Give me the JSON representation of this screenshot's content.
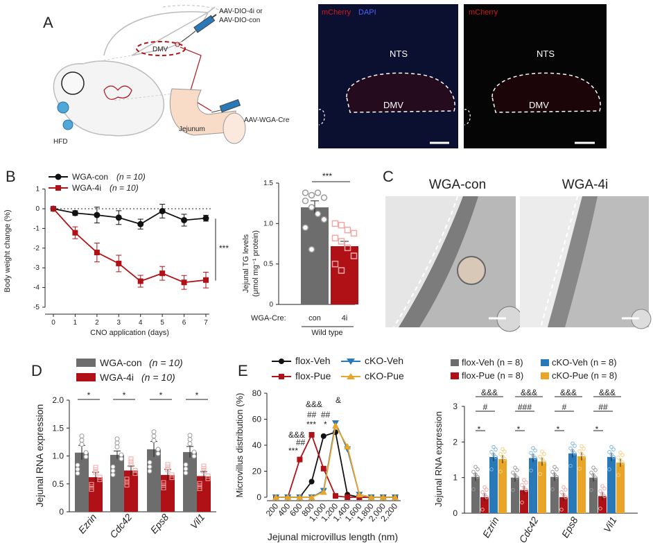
{
  "panels": {
    "A": "A",
    "B": "B",
    "C": "C",
    "D": "D",
    "E": "E"
  },
  "panelA": {
    "injection_top": [
      "AAV-DIO-4i or",
      "AAV-DIO-con"
    ],
    "injection_bottom": "AAV-WGA-Cre",
    "dmv": "DMV",
    "jejunum": "Jejunum",
    "hfd": "HFD",
    "img1": {
      "label_red": "mCherry",
      "label_blue": "DAPI",
      "nts": "NTS",
      "dmv": "DMV"
    },
    "img2": {
      "label_red": "mCherry",
      "nts": "NTS",
      "dmv": "DMV"
    }
  },
  "panelB": {
    "legend": [
      {
        "name": "WGA-con",
        "n": "(n = 10)"
      },
      {
        "name": "WGA-4i",
        "n": "(n = 10)"
      }
    ],
    "sig": "***",
    "bar": {
      "ylabel1": "Jejunal TG levels",
      "ylabel2": "(μmol mg⁻¹ protein)",
      "xrow": "WGA-Cre:",
      "cats": [
        "con",
        "4i"
      ],
      "group": "Wild type",
      "sig": "***"
    }
  },
  "panelC": {
    "left": "WGA-con",
    "right": "WGA-4i"
  },
  "panelD": {
    "legend": [
      {
        "name": "WGA-con",
        "n": "(n = 10)"
      },
      {
        "name": "WGA-4i",
        "n": "(n = 10)"
      }
    ]
  },
  "panelE": {
    "legend": [
      "flox-Veh",
      "cKO-Veh",
      "flox-Pue",
      "cKO-Pue"
    ],
    "annot": [
      "&&&",
      "##",
      "***",
      "&&&",
      "##",
      "***",
      "##",
      "*",
      "&"
    ],
    "bar_legend": [
      "flox-Veh (n = 8)",
      "cKO-Veh (n = 8)",
      "flox-Pue (n = 8)",
      "cKO-Pue (n = 8)"
    ],
    "bar_annot": {
      "amp": "&&&",
      "hash1": "#",
      "hash3": "###",
      "hash2": "##",
      "star": "*"
    }
  },
  "colors": {
    "grey": "#6d6d6d",
    "red": "#b01116",
    "blue": "#2979b9",
    "orange": "#e8a528",
    "black": "#111111"
  },
  "chart_data": [
    {
      "id": "B-line",
      "type": "line",
      "xlabel": "CNO application (days)",
      "ylabel": "Body weight change (%)",
      "x": [
        0,
        1,
        2,
        3,
        4,
        5,
        6,
        7
      ],
      "xlim": [
        0,
        7
      ],
      "ylim": [
        -5,
        1
      ],
      "yticks": [
        -5,
        -4,
        -3,
        -2,
        -1,
        0,
        1
      ],
      "series": [
        {
          "name": "WGA-con",
          "values": [
            0,
            -0.22,
            -0.32,
            -0.45,
            -0.78,
            -0.12,
            -0.58,
            -0.48
          ],
          "err": [
            0,
            0.12,
            0.4,
            0.35,
            0.25,
            0.35,
            0.3,
            0.15
          ]
        },
        {
          "name": "WGA-4i",
          "values": [
            0,
            -1.22,
            -2.22,
            -2.78,
            -3.68,
            -3.28,
            -3.74,
            -3.62
          ],
          "err": [
            0,
            0.3,
            0.48,
            0.42,
            0.3,
            0.35,
            0.35,
            0.4
          ]
        }
      ]
    },
    {
      "id": "B-bar",
      "type": "bar",
      "categories": [
        "con",
        "4i"
      ],
      "values": [
        1.2,
        0.72
      ],
      "err": [
        0.08,
        0.06
      ],
      "ylim": [
        0,
        1.5
      ],
      "yticks": [
        0,
        0.5,
        1.0,
        1.5
      ],
      "points": [
        [
          1.38,
          1.35,
          1.38,
          1.32,
          1.28,
          1.2,
          1.12,
          1.05,
          0.95,
          0.68
        ],
        [
          1.0,
          0.98,
          0.92,
          0.88,
          0.82,
          0.78,
          0.7,
          0.6,
          0.5,
          0.42
        ]
      ]
    },
    {
      "id": "D",
      "type": "bar",
      "ylabel": "Jejunal RNA expression",
      "categories": [
        "Ezrin",
        "Cdc42",
        "Eps8",
        "Vil1"
      ],
      "ylim": [
        0,
        2.0
      ],
      "yticks": [
        0,
        0.5,
        1.0,
        1.5,
        2.0
      ],
      "series": [
        {
          "name": "WGA-con",
          "values": [
            1.06,
            1.02,
            1.12,
            1.07
          ],
          "err": [
            0.13,
            0.07,
            0.14,
            0.1
          ]
        },
        {
          "name": "WGA-4i",
          "values": [
            0.62,
            0.74,
            0.66,
            0.64
          ],
          "err": [
            0.09,
            0.08,
            0.1,
            0.08
          ]
        }
      ],
      "sig": [
        "*",
        "*",
        "*",
        "*"
      ]
    },
    {
      "id": "E-line",
      "type": "line",
      "xlabel": "Jejunal microvillus length (nm)",
      "ylabel": "Microvillus distribution (%)",
      "x": [
        200,
        400,
        600,
        800,
        1000,
        1200,
        1400,
        1600,
        1800,
        2000,
        2200
      ],
      "ylim": [
        0,
        80
      ],
      "yticks": [
        0,
        20,
        40,
        60,
        80
      ],
      "series": [
        {
          "name": "flox-Veh",
          "values": [
            0,
            0,
            0,
            12,
            47,
            50,
            2,
            0,
            0,
            0,
            0
          ]
        },
        {
          "name": "flox-Pue",
          "values": [
            0,
            0,
            29,
            48,
            22,
            1,
            0,
            0,
            0,
            0,
            0
          ]
        },
        {
          "name": "cKO-Veh",
          "values": [
            0,
            0,
            0,
            0,
            5,
            57,
            37,
            2,
            0,
            0,
            0
          ]
        },
        {
          "name": "cKO-Pue",
          "values": [
            0,
            0,
            0,
            0,
            4,
            55,
            39,
            2,
            0,
            0,
            0
          ]
        }
      ]
    },
    {
      "id": "E-bar",
      "type": "bar",
      "ylabel": "Jejunal RNA expression",
      "categories": [
        "Ezrin",
        "Cdc42",
        "Eps8",
        "Vil1"
      ],
      "ylim": [
        0,
        3
      ],
      "yticks": [
        0,
        1,
        2,
        3
      ],
      "series": [
        {
          "name": "flox-Veh",
          "values": [
            1.02,
            1.0,
            1.02,
            1.0
          ]
        },
        {
          "name": "flox-Pue",
          "values": [
            0.45,
            0.65,
            0.45,
            0.48
          ]
        },
        {
          "name": "cKO-Veh",
          "values": [
            1.58,
            1.55,
            1.68,
            1.58
          ]
        },
        {
          "name": "cKO-Pue",
          "values": [
            1.52,
            1.45,
            1.6,
            1.42
          ]
        }
      ]
    }
  ]
}
